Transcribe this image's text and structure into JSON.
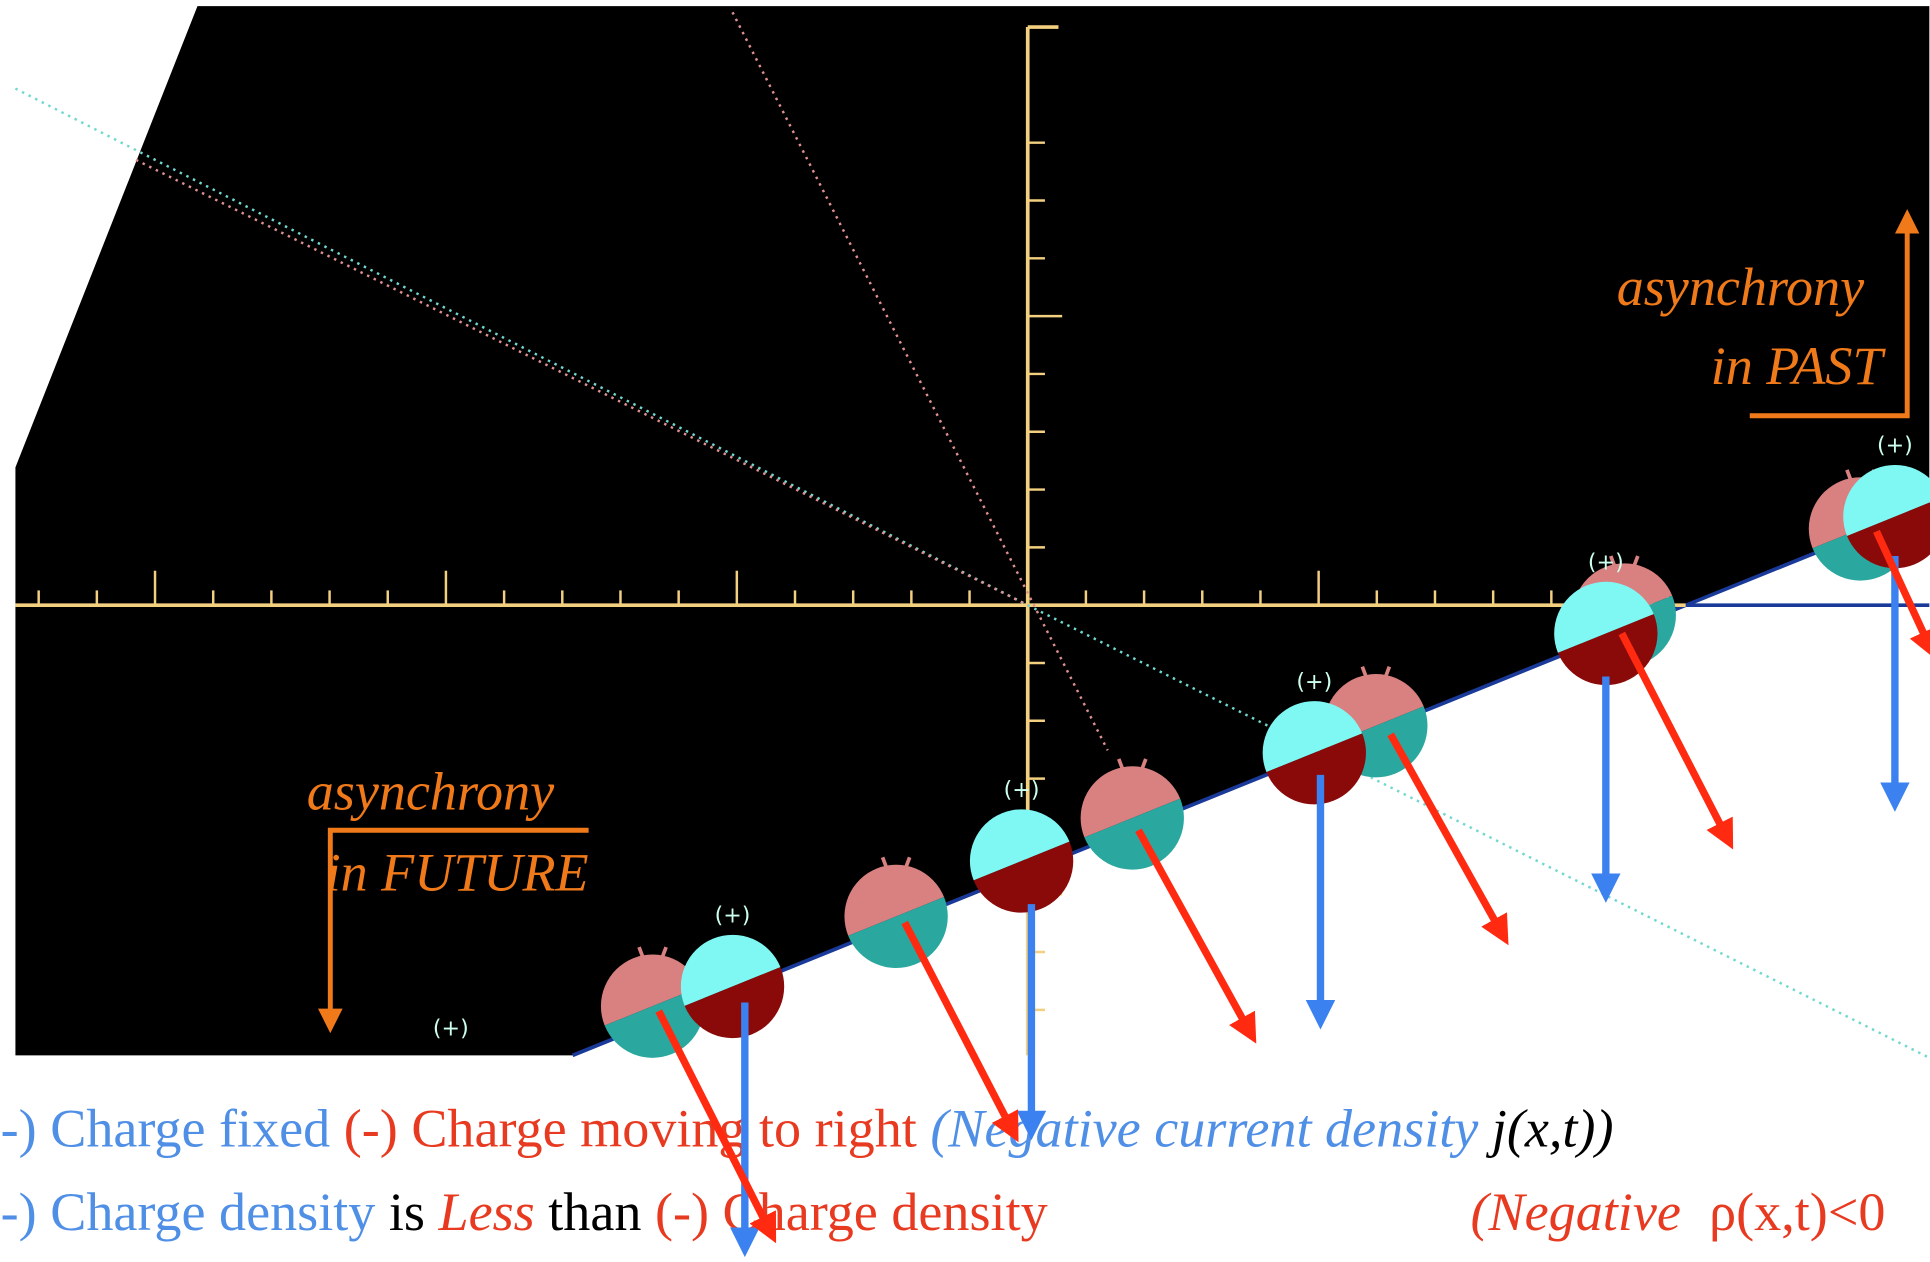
{
  "labels": {
    "past": [
      "asynchrony",
      "in PAST"
    ],
    "future": [
      "asynchrony",
      "in FUTURE"
    ]
  },
  "charge_sign": "(+)",
  "caption": {
    "line1": [
      "-) Charge fixed",
      "(-) Charge moving to right",
      "(Negative current density",
      "j(x,t))"
    ],
    "line2": [
      "-) Charge density",
      "is",
      "Less",
      "than",
      "(-) Charge density",
      "(Negative",
      "ρ(x,t)<0"
    ]
  }
}
